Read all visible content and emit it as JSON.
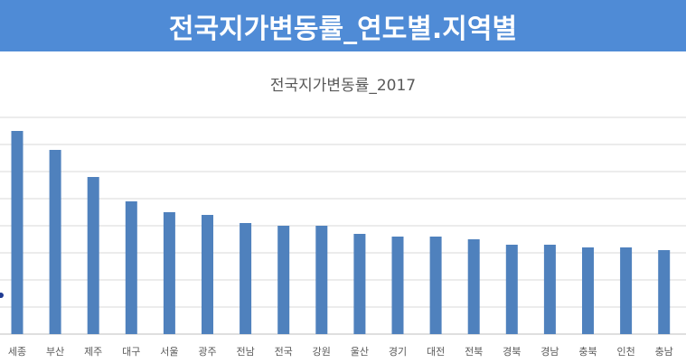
{
  "header": {
    "title": "전국지가변동률_연도별.지역별"
  },
  "colors": {
    "banner": "#4f8bd6",
    "bar": "#4f81bd",
    "grid": "#d9d9d9"
  },
  "chart_data": {
    "type": "bar",
    "title": "전국지가변동률_2017",
    "categories": [
      "세종",
      "부산",
      "제주",
      "대구",
      "서울",
      "광주",
      "전남",
      "전국",
      "강원",
      "울산",
      "경기",
      "대전",
      "전북",
      "경북",
      "경남",
      "충북",
      "인천",
      "충남"
    ],
    "values": [
      7.5,
      6.8,
      5.8,
      4.9,
      4.5,
      4.4,
      4.1,
      4.0,
      4.0,
      3.7,
      3.6,
      3.6,
      3.5,
      3.3,
      3.3,
      3.2,
      3.2,
      3.1
    ],
    "ylim": [
      0,
      8
    ],
    "grid": true,
    "xlabel": "",
    "ylabel": ""
  }
}
